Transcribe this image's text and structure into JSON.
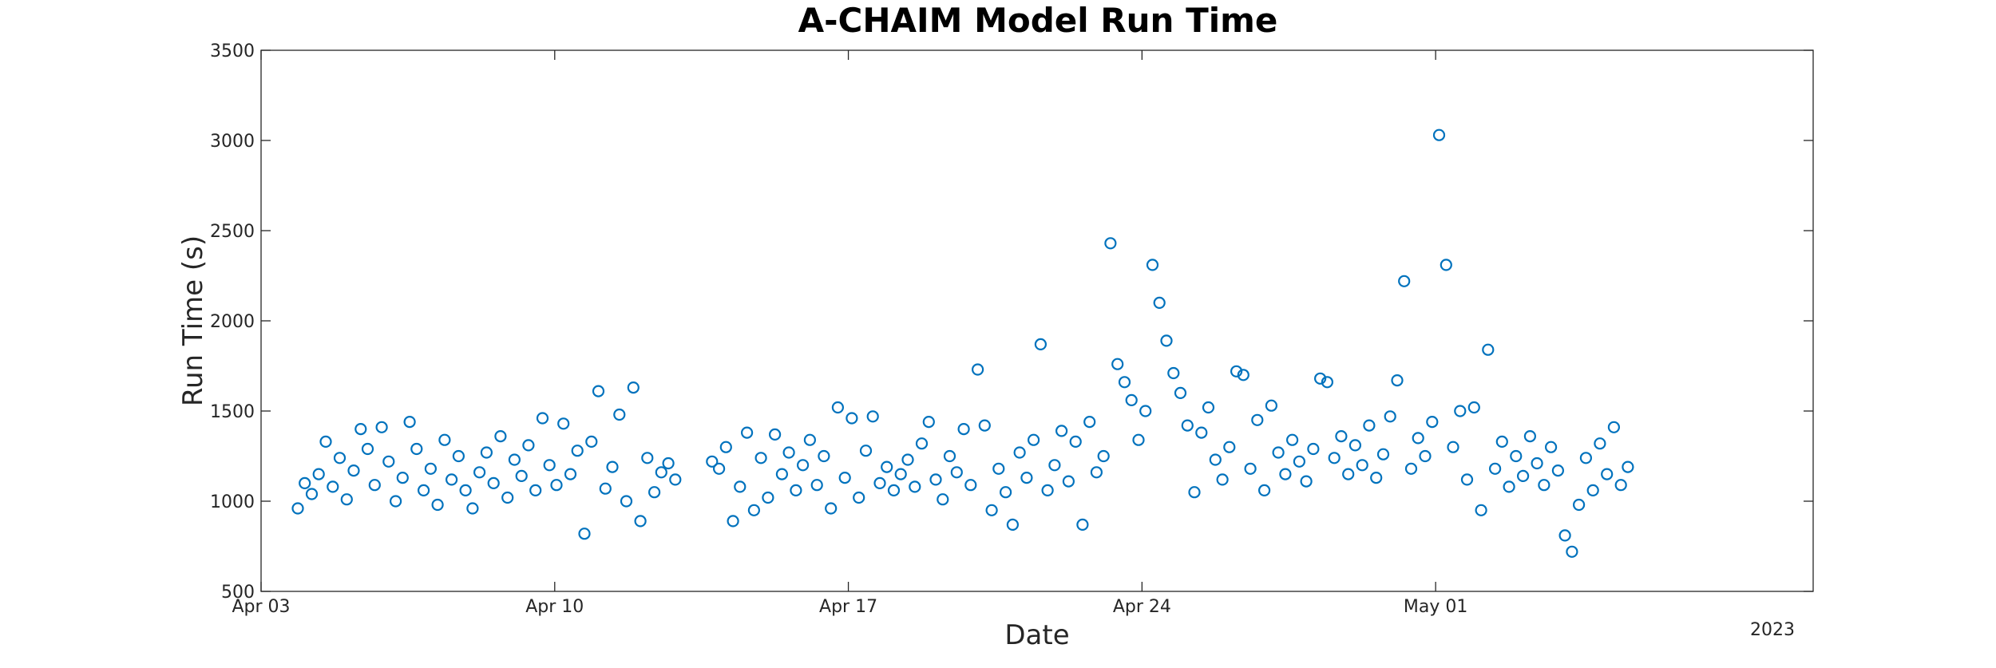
{
  "chart_data": {
    "type": "scatter",
    "title": "A-CHAIM Model Run Time",
    "xlabel": "Date",
    "ylabel": "Run Time (s)",
    "year_label": "2023",
    "x_axis": {
      "type": "date",
      "range": [
        "2023-04-03",
        "2023-05-10"
      ],
      "ticks": [
        {
          "date": "2023-04-03",
          "label": "Apr 03"
        },
        {
          "date": "2023-04-10",
          "label": "Apr 10"
        },
        {
          "date": "2023-04-17",
          "label": "Apr 17"
        },
        {
          "date": "2023-04-24",
          "label": "Apr 24"
        },
        {
          "date": "2023-05-01",
          "label": "May 01"
        }
      ]
    },
    "y_axis": {
      "range": [
        500,
        3500
      ],
      "ticks": [
        500,
        1000,
        1500,
        2000,
        2500,
        3000,
        3500
      ]
    },
    "grid": false,
    "marker": "circle-open",
    "colors": {
      "series": "#0072BD",
      "axis": "#262626"
    },
    "series": [
      {
        "data": [
          [
            "2023-04-03T21:00",
            960
          ],
          [
            "2023-04-04T01:00",
            1100
          ],
          [
            "2023-04-04T05:00",
            1040
          ],
          [
            "2023-04-04T09:00",
            1150
          ],
          [
            "2023-04-04T13:00",
            1330
          ],
          [
            "2023-04-04T17:00",
            1080
          ],
          [
            "2023-04-04T21:00",
            1240
          ],
          [
            "2023-04-05T01:00",
            1010
          ],
          [
            "2023-04-05T05:00",
            1170
          ],
          [
            "2023-04-05T09:00",
            1400
          ],
          [
            "2023-04-05T13:00",
            1290
          ],
          [
            "2023-04-05T17:00",
            1090
          ],
          [
            "2023-04-05T21:00",
            1410
          ],
          [
            "2023-04-06T01:00",
            1220
          ],
          [
            "2023-04-06T05:00",
            1000
          ],
          [
            "2023-04-06T09:00",
            1130
          ],
          [
            "2023-04-06T13:00",
            1440
          ],
          [
            "2023-04-06T17:00",
            1290
          ],
          [
            "2023-04-06T21:00",
            1060
          ],
          [
            "2023-04-07T01:00",
            1180
          ],
          [
            "2023-04-07T05:00",
            980
          ],
          [
            "2023-04-07T09:00",
            1340
          ],
          [
            "2023-04-07T13:00",
            1120
          ],
          [
            "2023-04-07T17:00",
            1250
          ],
          [
            "2023-04-07T21:00",
            1060
          ],
          [
            "2023-04-08T01:00",
            960
          ],
          [
            "2023-04-08T05:00",
            1160
          ],
          [
            "2023-04-08T09:00",
            1270
          ],
          [
            "2023-04-08T13:00",
            1100
          ],
          [
            "2023-04-08T17:00",
            1360
          ],
          [
            "2023-04-08T21:00",
            1020
          ],
          [
            "2023-04-09T01:00",
            1230
          ],
          [
            "2023-04-09T05:00",
            1140
          ],
          [
            "2023-04-09T09:00",
            1310
          ],
          [
            "2023-04-09T13:00",
            1060
          ],
          [
            "2023-04-09T17:00",
            1460
          ],
          [
            "2023-04-09T21:00",
            1200
          ],
          [
            "2023-04-10T01:00",
            1090
          ],
          [
            "2023-04-10T05:00",
            1430
          ],
          [
            "2023-04-10T09:00",
            1150
          ],
          [
            "2023-04-10T13:00",
            1280
          ],
          [
            "2023-04-10T17:00",
            820
          ],
          [
            "2023-04-10T21:00",
            1330
          ],
          [
            "2023-04-11T01:00",
            1610
          ],
          [
            "2023-04-11T05:00",
            1070
          ],
          [
            "2023-04-11T09:00",
            1190
          ],
          [
            "2023-04-11T13:00",
            1480
          ],
          [
            "2023-04-11T17:00",
            1000
          ],
          [
            "2023-04-11T21:00",
            1630
          ],
          [
            "2023-04-12T01:00",
            890
          ],
          [
            "2023-04-12T05:00",
            1240
          ],
          [
            "2023-04-12T09:00",
            1050
          ],
          [
            "2023-04-12T13:00",
            1160
          ],
          [
            "2023-04-12T17:00",
            1210
          ],
          [
            "2023-04-12T21:00",
            1120
          ],
          [
            "2023-04-13T18:00",
            1220
          ],
          [
            "2023-04-13T22:00",
            1180
          ],
          [
            "2023-04-14T02:00",
            1300
          ],
          [
            "2023-04-14T06:00",
            890
          ],
          [
            "2023-04-14T10:00",
            1080
          ],
          [
            "2023-04-14T14:00",
            1380
          ],
          [
            "2023-04-14T18:00",
            950
          ],
          [
            "2023-04-14T22:00",
            1240
          ],
          [
            "2023-04-15T02:00",
            1020
          ],
          [
            "2023-04-15T06:00",
            1370
          ],
          [
            "2023-04-15T10:00",
            1150
          ],
          [
            "2023-04-15T14:00",
            1270
          ],
          [
            "2023-04-15T18:00",
            1060
          ],
          [
            "2023-04-15T22:00",
            1200
          ],
          [
            "2023-04-16T02:00",
            1340
          ],
          [
            "2023-04-16T06:00",
            1090
          ],
          [
            "2023-04-16T10:00",
            1250
          ],
          [
            "2023-04-16T14:00",
            960
          ],
          [
            "2023-04-16T18:00",
            1520
          ],
          [
            "2023-04-16T22:00",
            1130
          ],
          [
            "2023-04-17T02:00",
            1460
          ],
          [
            "2023-04-17T06:00",
            1020
          ],
          [
            "2023-04-17T10:00",
            1280
          ],
          [
            "2023-04-17T14:00",
            1470
          ],
          [
            "2023-04-17T18:00",
            1100
          ],
          [
            "2023-04-17T22:00",
            1190
          ],
          [
            "2023-04-18T02:00",
            1060
          ],
          [
            "2023-04-18T06:00",
            1150
          ],
          [
            "2023-04-18T10:00",
            1230
          ],
          [
            "2023-04-18T14:00",
            1080
          ],
          [
            "2023-04-18T18:00",
            1320
          ],
          [
            "2023-04-18T22:00",
            1440
          ],
          [
            "2023-04-19T02:00",
            1120
          ],
          [
            "2023-04-19T06:00",
            1010
          ],
          [
            "2023-04-19T10:00",
            1250
          ],
          [
            "2023-04-19T14:00",
            1160
          ],
          [
            "2023-04-19T18:00",
            1400
          ],
          [
            "2023-04-19T22:00",
            1090
          ],
          [
            "2023-04-20T02:00",
            1730
          ],
          [
            "2023-04-20T06:00",
            1420
          ],
          [
            "2023-04-20T10:00",
            950
          ],
          [
            "2023-04-20T14:00",
            1180
          ],
          [
            "2023-04-20T18:00",
            1050
          ],
          [
            "2023-04-20T22:00",
            870
          ],
          [
            "2023-04-21T02:00",
            1270
          ],
          [
            "2023-04-21T06:00",
            1130
          ],
          [
            "2023-04-21T10:00",
            1340
          ],
          [
            "2023-04-21T14:00",
            1870
          ],
          [
            "2023-04-21T18:00",
            1060
          ],
          [
            "2023-04-21T22:00",
            1200
          ],
          [
            "2023-04-22T02:00",
            1390
          ],
          [
            "2023-04-22T06:00",
            1110
          ],
          [
            "2023-04-22T10:00",
            1330
          ],
          [
            "2023-04-22T14:00",
            870
          ],
          [
            "2023-04-22T18:00",
            1440
          ],
          [
            "2023-04-22T22:00",
            1160
          ],
          [
            "2023-04-23T02:00",
            1250
          ],
          [
            "2023-04-23T06:00",
            2430
          ],
          [
            "2023-04-23T10:00",
            1760
          ],
          [
            "2023-04-23T14:00",
            1660
          ],
          [
            "2023-04-23T18:00",
            1560
          ],
          [
            "2023-04-23T22:00",
            1340
          ],
          [
            "2023-04-24T02:00",
            1500
          ],
          [
            "2023-04-24T06:00",
            2310
          ],
          [
            "2023-04-24T10:00",
            2100
          ],
          [
            "2023-04-24T14:00",
            1890
          ],
          [
            "2023-04-24T18:00",
            1710
          ],
          [
            "2023-04-24T22:00",
            1600
          ],
          [
            "2023-04-25T02:00",
            1420
          ],
          [
            "2023-04-25T06:00",
            1050
          ],
          [
            "2023-04-25T10:00",
            1380
          ],
          [
            "2023-04-25T14:00",
            1520
          ],
          [
            "2023-04-25T18:00",
            1230
          ],
          [
            "2023-04-25T22:00",
            1120
          ],
          [
            "2023-04-26T02:00",
            1300
          ],
          [
            "2023-04-26T06:00",
            1720
          ],
          [
            "2023-04-26T10:00",
            1700
          ],
          [
            "2023-04-26T14:00",
            1180
          ],
          [
            "2023-04-26T18:00",
            1450
          ],
          [
            "2023-04-26T22:00",
            1060
          ],
          [
            "2023-04-27T02:00",
            1530
          ],
          [
            "2023-04-27T06:00",
            1270
          ],
          [
            "2023-04-27T10:00",
            1150
          ],
          [
            "2023-04-27T14:00",
            1340
          ],
          [
            "2023-04-27T18:00",
            1220
          ],
          [
            "2023-04-27T22:00",
            1110
          ],
          [
            "2023-04-28T02:00",
            1290
          ],
          [
            "2023-04-28T06:00",
            1680
          ],
          [
            "2023-04-28T10:00",
            1660
          ],
          [
            "2023-04-28T14:00",
            1240
          ],
          [
            "2023-04-28T18:00",
            1360
          ],
          [
            "2023-04-28T22:00",
            1150
          ],
          [
            "2023-04-29T02:00",
            1310
          ],
          [
            "2023-04-29T06:00",
            1200
          ],
          [
            "2023-04-29T10:00",
            1420
          ],
          [
            "2023-04-29T14:00",
            1130
          ],
          [
            "2023-04-29T18:00",
            1260
          ],
          [
            "2023-04-29T22:00",
            1470
          ],
          [
            "2023-04-30T02:00",
            1670
          ],
          [
            "2023-04-30T06:00",
            2220
          ],
          [
            "2023-04-30T10:00",
            1180
          ],
          [
            "2023-04-30T14:00",
            1350
          ],
          [
            "2023-04-30T18:00",
            1250
          ],
          [
            "2023-04-30T22:00",
            1440
          ],
          [
            "2023-05-01T02:00",
            3030
          ],
          [
            "2023-05-01T06:00",
            2310
          ],
          [
            "2023-05-01T10:00",
            1300
          ],
          [
            "2023-05-01T14:00",
            1500
          ],
          [
            "2023-05-01T18:00",
            1120
          ],
          [
            "2023-05-01T22:00",
            1520
          ],
          [
            "2023-05-02T02:00",
            950
          ],
          [
            "2023-05-02T06:00",
            1840
          ],
          [
            "2023-05-02T10:00",
            1180
          ],
          [
            "2023-05-02T14:00",
            1330
          ],
          [
            "2023-05-02T18:00",
            1080
          ],
          [
            "2023-05-02T22:00",
            1250
          ],
          [
            "2023-05-03T02:00",
            1140
          ],
          [
            "2023-05-03T06:00",
            1360
          ],
          [
            "2023-05-03T10:00",
            1210
          ],
          [
            "2023-05-03T14:00",
            1090
          ],
          [
            "2023-05-03T18:00",
            1300
          ],
          [
            "2023-05-03T22:00",
            1170
          ],
          [
            "2023-05-04T02:00",
            810
          ],
          [
            "2023-05-04T06:00",
            720
          ],
          [
            "2023-05-04T10:00",
            980
          ],
          [
            "2023-05-04T14:00",
            1240
          ],
          [
            "2023-05-04T18:00",
            1060
          ],
          [
            "2023-05-04T22:00",
            1320
          ],
          [
            "2023-05-05T02:00",
            1150
          ],
          [
            "2023-05-05T06:00",
            1410
          ],
          [
            "2023-05-05T10:00",
            1090
          ],
          [
            "2023-05-05T14:00",
            1190
          ]
        ]
      }
    ]
  }
}
